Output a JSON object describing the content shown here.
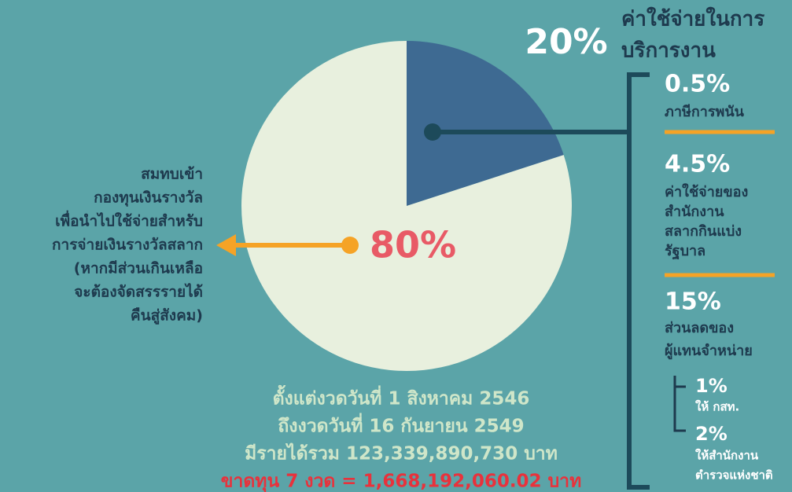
{
  "chart_data": {
    "type": "pie",
    "values": [
      20,
      80
    ],
    "value_labels": [
      "20%",
      "80%"
    ],
    "colors": [
      "#3e6a92",
      "#e8f0de"
    ],
    "labels": [
      [
        "ค่าใช้จ่ายในการ",
        "บริการงาน"
      ],
      [
        "สมทบเข้า",
        "กองทุนเงินรางวัล",
        "เพื่อนำไปใช้จ่ายสำหรับ",
        "การจ่ายเงินรางวัลสลาก",
        "(หากมีส่วนเกินเหลือ",
        "จะต้องจัดสรรรายได้",
        "คืนสู่สังคม)"
      ]
    ],
    "breakdown": [
      {
        "value_label": "0.5%",
        "label": [
          "ภาษีการพนัน"
        ]
      },
      {
        "value_label": "4.5%",
        "label": [
          "ค่าใช้จ่ายของ",
          "สำนักงาน",
          "สลากกินแบ่ง",
          "รัฐบาล"
        ]
      },
      {
        "value_label": "15%",
        "label": [
          "ส่วนลดของ",
          "ผู้แทนจำหน่าย"
        ],
        "children": [
          {
            "value_label": "1%",
            "label": [
              "ให้ กสท."
            ]
          },
          {
            "value_label": "2%",
            "label": [
              "ให้สำนักงาน",
              "ตำรวจแห่งชาติ"
            ]
          }
        ]
      }
    ],
    "notes": [
      "ตั้งแต่งวดวันที่ 1 สิงหาคม 2546",
      "ถึงงวดวันที่ 16 กันยายน 2549",
      "มีรายได้รวม 123,339,890,730 บาท",
      "ขาดทุน 7 งวด = 1,668,192,060.02 บาท"
    ]
  }
}
